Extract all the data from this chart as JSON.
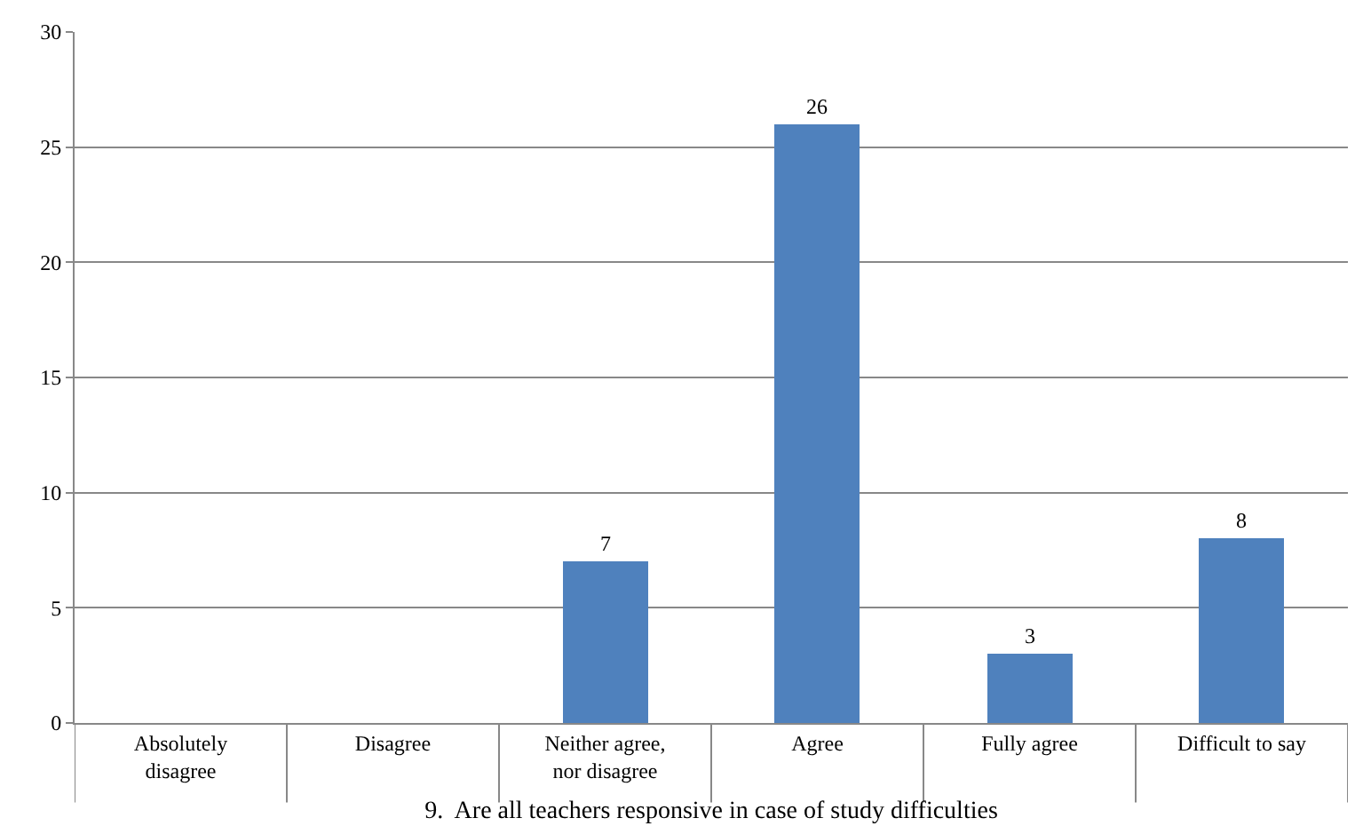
{
  "chart_data": {
    "type": "bar",
    "xlabel": "9.  Are all teachers responsive in case of study difficulties",
    "categories": [
      "Absolutely disagree",
      "Disagree",
      "Neither agree, nor disagree",
      "Agree",
      "Fully agree",
      "Difficult to say"
    ],
    "values": [
      0,
      0,
      7,
      26,
      3,
      8
    ],
    "value_labels": [
      null,
      null,
      "7",
      "26",
      "3",
      "8"
    ],
    "color": "#4f81bd",
    "ylim": [
      0,
      30
    ],
    "yticks": [
      0,
      5,
      10,
      15,
      20,
      25,
      30
    ],
    "grid": "y"
  }
}
